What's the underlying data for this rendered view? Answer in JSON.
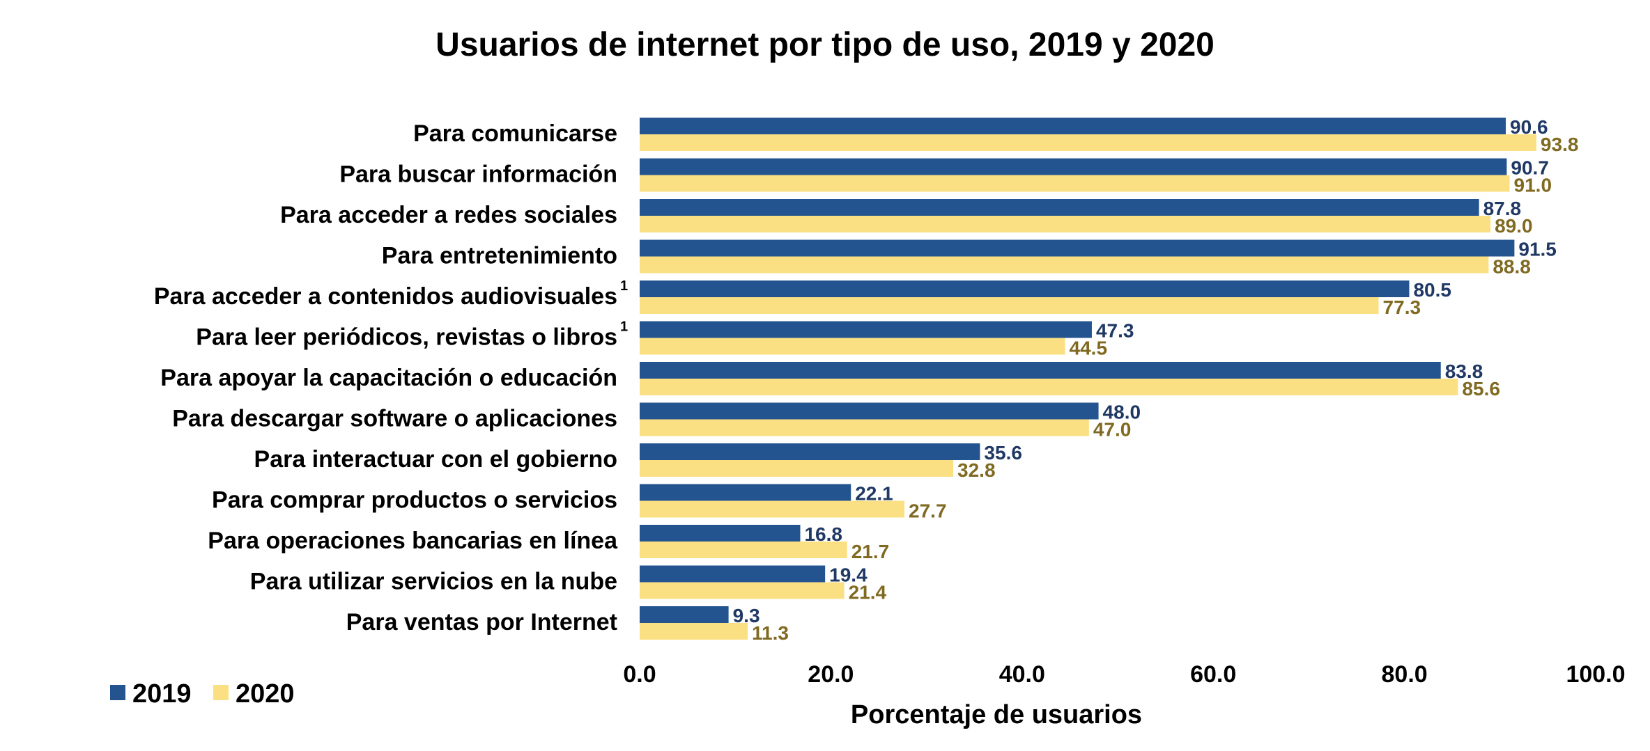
{
  "chart_data": {
    "type": "bar",
    "orientation": "horizontal",
    "title": "Usuarios de internet por tipo de uso, 2019 y 2020",
    "xlabel": "Porcentaje de usuarios",
    "ylabel": "",
    "xlim": [
      0,
      100
    ],
    "xticks": [
      "0.0",
      "20.0",
      "40.0",
      "60.0",
      "80.0",
      "100.0"
    ],
    "grid": false,
    "legend_position": "bottom-left",
    "categories": [
      {
        "label": "Para comunicarse",
        "note": ""
      },
      {
        "label": "Para buscar información",
        "note": ""
      },
      {
        "label": "Para acceder a redes sociales",
        "note": ""
      },
      {
        "label": "Para entretenimiento",
        "note": ""
      },
      {
        "label": "Para acceder a contenidos audiovisuales",
        "note": "1"
      },
      {
        "label": "Para leer periódicos, revistas o libros",
        "note": "1"
      },
      {
        "label": "Para apoyar la capacitación o educación",
        "note": ""
      },
      {
        "label": "Para descargar software o aplicaciones",
        "note": ""
      },
      {
        "label": "Para interactuar con el gobierno",
        "note": ""
      },
      {
        "label": "Para comprar productos o servicios",
        "note": ""
      },
      {
        "label": "Para operaciones bancarias en línea",
        "note": ""
      },
      {
        "label": "Para utilizar servicios en la nube",
        "note": ""
      },
      {
        "label": "Para ventas por Internet",
        "note": ""
      }
    ],
    "series": [
      {
        "name": "2019",
        "color": "#24548f",
        "label_color": "#1f3864",
        "values": [
          90.6,
          90.7,
          87.8,
          91.5,
          80.5,
          47.3,
          83.8,
          48.0,
          35.6,
          22.1,
          16.8,
          19.4,
          9.3
        ],
        "labels": [
          "90.6",
          "90.7",
          "87.8",
          "91.5",
          "80.5",
          "47.3",
          "83.8",
          "48.0",
          "35.6",
          "22.1",
          "16.8",
          "19.4",
          "9.3"
        ]
      },
      {
        "name": "2020",
        "color": "#fbe083",
        "label_color": "#806a22",
        "values": [
          93.8,
          91.0,
          89.0,
          88.8,
          77.3,
          44.5,
          85.6,
          47.0,
          32.8,
          27.7,
          21.7,
          21.4,
          11.3
        ],
        "labels": [
          "93.8",
          "91.0",
          "89.0",
          "88.8",
          "77.3",
          "44.5",
          "85.6",
          "47.0",
          "32.8",
          "27.7",
          "21.7",
          "21.4",
          "11.3"
        ]
      }
    ]
  }
}
